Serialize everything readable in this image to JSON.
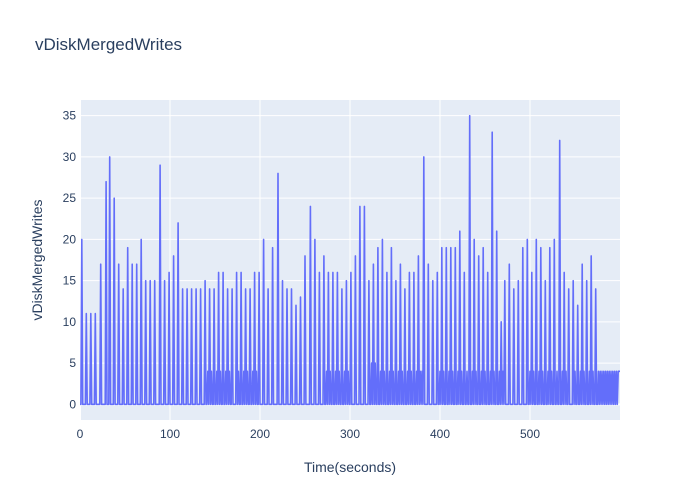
{
  "chart_data": {
    "type": "line",
    "title": "vDiskMergedWrites",
    "xlabel": "Time(seconds)",
    "ylabel": "vDiskMergedWrites",
    "xlim": [
      0,
      600
    ],
    "ylim": [
      -1.9,
      36.9
    ],
    "x_ticks": [
      0,
      100,
      200,
      300,
      400,
      500
    ],
    "y_ticks": [
      0,
      5,
      10,
      15,
      20,
      25,
      30,
      35
    ],
    "grid": true,
    "legend": "none",
    "colors": {
      "line": "#636efa",
      "plot_bg": "#e5ecf6",
      "grid": "#ffffff",
      "text": "#2a3f5f"
    },
    "series": [
      {
        "peaks": [
          [
            2,
            20
          ],
          [
            7,
            11
          ],
          [
            12,
            11
          ],
          [
            17,
            11
          ],
          [
            23,
            17
          ],
          [
            29,
            27
          ],
          [
            33,
            30
          ],
          [
            38,
            25
          ],
          [
            43,
            17
          ],
          [
            48,
            14
          ],
          [
            53,
            19
          ],
          [
            58,
            17
          ],
          [
            63,
            17
          ],
          [
            68,
            20
          ],
          [
            73,
            15
          ],
          [
            78,
            15
          ],
          [
            83,
            15
          ],
          [
            89,
            29
          ],
          [
            94,
            15
          ],
          [
            99,
            16
          ],
          [
            104,
            18
          ],
          [
            109,
            22
          ],
          [
            114,
            14
          ],
          [
            119,
            14
          ],
          [
            124,
            14
          ],
          [
            129,
            14
          ],
          [
            134,
            14
          ],
          [
            139,
            15
          ],
          [
            144,
            14
          ],
          [
            149,
            14
          ],
          [
            154,
            16
          ],
          [
            159,
            16
          ],
          [
            164,
            14
          ],
          [
            169,
            14
          ],
          [
            174,
            16
          ],
          [
            179,
            16
          ],
          [
            184,
            14
          ],
          [
            189,
            14
          ],
          [
            194,
            16
          ],
          [
            199,
            16
          ],
          [
            204,
            20
          ],
          [
            209,
            14
          ],
          [
            214,
            19
          ],
          [
            220,
            28
          ],
          [
            225,
            15
          ],
          [
            230,
            14
          ],
          [
            235,
            14
          ],
          [
            240,
            12
          ],
          [
            245,
            13
          ],
          [
            250,
            18
          ],
          [
            256,
            24
          ],
          [
            261,
            20
          ],
          [
            266,
            16
          ],
          [
            271,
            18
          ],
          [
            276,
            16
          ],
          [
            281,
            16
          ],
          [
            286,
            16
          ],
          [
            291,
            14
          ],
          [
            296,
            15
          ],
          [
            301,
            16
          ],
          [
            306,
            18
          ],
          [
            311,
            24
          ],
          [
            316,
            24
          ],
          [
            321,
            15
          ],
          [
            326,
            17
          ],
          [
            331,
            19
          ],
          [
            336,
            20
          ],
          [
            341,
            16
          ],
          [
            346,
            19
          ],
          [
            351,
            15
          ],
          [
            356,
            17
          ],
          [
            361,
            14
          ],
          [
            366,
            16
          ],
          [
            371,
            16
          ],
          [
            376,
            18
          ],
          [
            382,
            30
          ],
          [
            387,
            17
          ],
          [
            392,
            15
          ],
          [
            397,
            16
          ],
          [
            402,
            19
          ],
          [
            407,
            19
          ],
          [
            412,
            19
          ],
          [
            417,
            19
          ],
          [
            422,
            21
          ],
          [
            427,
            16
          ],
          [
            433,
            35
          ],
          [
            438,
            20
          ],
          [
            443,
            18
          ],
          [
            448,
            19
          ],
          [
            453,
            16
          ],
          [
            458,
            33
          ],
          [
            463,
            21
          ],
          [
            468,
            10
          ],
          [
            472,
            15
          ],
          [
            477,
            17
          ],
          [
            482,
            14
          ],
          [
            487,
            15
          ],
          [
            492,
            19
          ],
          [
            497,
            20
          ],
          [
            502,
            16
          ],
          [
            507,
            20
          ],
          [
            512,
            19
          ],
          [
            517,
            15
          ],
          [
            522,
            19
          ],
          [
            527,
            20
          ],
          [
            533,
            32
          ],
          [
            538,
            16
          ],
          [
            543,
            14
          ],
          [
            548,
            15
          ],
          [
            553,
            12
          ],
          [
            558,
            17
          ],
          [
            563,
            15
          ],
          [
            568,
            18
          ],
          [
            573,
            14
          ]
        ],
        "baseline_bands": [
          {
            "x": [
              140,
              170
            ],
            "level": 4
          },
          {
            "x": [
              175,
              200
            ],
            "level": 4
          },
          {
            "x": [
              270,
              300
            ],
            "level": 4
          },
          {
            "x": [
              320,
              330
            ],
            "level": 5
          },
          {
            "x": [
              330,
              380
            ],
            "level": 4
          },
          {
            "x": [
              395,
              425
            ],
            "level": 4
          },
          {
            "x": [
              430,
              470
            ],
            "level": 4
          },
          {
            "x": [
              500,
              540
            ],
            "level": 4
          },
          {
            "x": [
              550,
              600
            ],
            "level": 4
          }
        ]
      }
    ]
  }
}
